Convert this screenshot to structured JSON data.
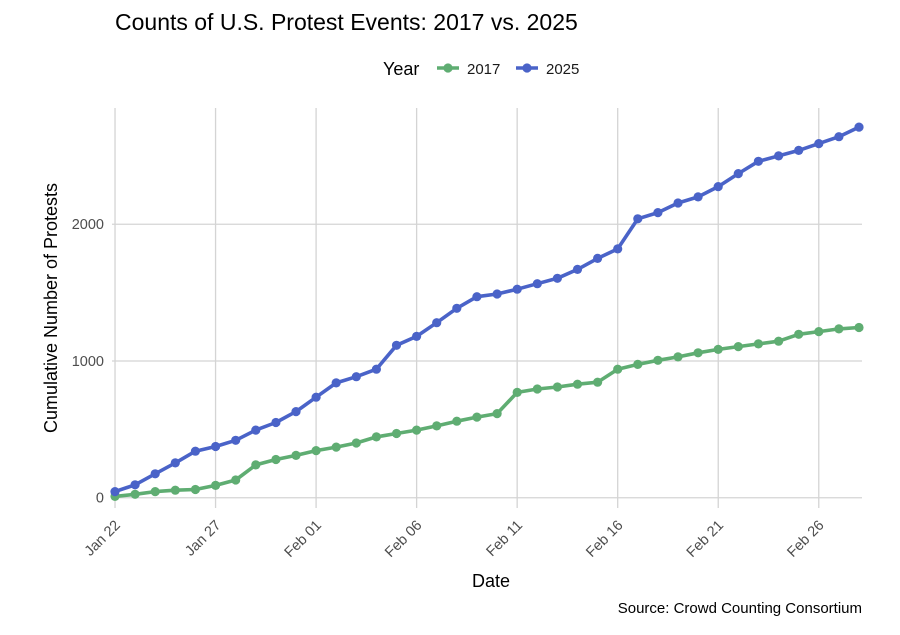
{
  "chart_data": {
    "type": "line",
    "title": "Counts of U.S. Protest Events: 2017 vs. 2025",
    "xlabel": "Date",
    "ylabel": "Cumulative Number of Protests",
    "caption": "Source: Crowd Counting Consortium",
    "legend_title": "Year",
    "legend_position": "top",
    "grid": true,
    "x_type": "date",
    "x_start": "Jan 22",
    "xlim": [
      "Jan 22",
      "Feb 28"
    ],
    "ylim": [
      -75,
      2850
    ],
    "x_ticks": [
      "Jan 22",
      "Jan 27",
      "Feb 01",
      "Feb 06",
      "Feb 11",
      "Feb 16",
      "Feb 21",
      "Feb 26"
    ],
    "y_ticks": [
      0,
      1000,
      2000
    ],
    "x": [
      "Jan 22",
      "Jan 23",
      "Jan 24",
      "Jan 25",
      "Jan 26",
      "Jan 27",
      "Jan 28",
      "Jan 29",
      "Jan 30",
      "Jan 31",
      "Feb 01",
      "Feb 02",
      "Feb 03",
      "Feb 04",
      "Feb 05",
      "Feb 06",
      "Feb 07",
      "Feb 08",
      "Feb 09",
      "Feb 10",
      "Feb 11",
      "Feb 12",
      "Feb 13",
      "Feb 14",
      "Feb 15",
      "Feb 16",
      "Feb 17",
      "Feb 18",
      "Feb 19",
      "Feb 20",
      "Feb 21",
      "Feb 22",
      "Feb 23",
      "Feb 24",
      "Feb 25",
      "Feb 26",
      "Feb 27",
      "Feb 28"
    ],
    "series": [
      {
        "name": "2017",
        "color": "#5fad72",
        "values": [
          10,
          25,
          45,
          55,
          60,
          90,
          130,
          240,
          280,
          310,
          345,
          370,
          400,
          445,
          470,
          495,
          525,
          560,
          590,
          615,
          770,
          795,
          810,
          830,
          845,
          940,
          975,
          1005,
          1030,
          1060,
          1085,
          1105,
          1125,
          1145,
          1195,
          1215,
          1235,
          1245
        ]
      },
      {
        "name": "2025",
        "color": "#4a63c8",
        "values": [
          45,
          95,
          175,
          255,
          340,
          375,
          420,
          495,
          550,
          630,
          735,
          840,
          885,
          940,
          1115,
          1180,
          1280,
          1385,
          1470,
          1490,
          1525,
          1565,
          1605,
          1670,
          1750,
          1820,
          2040,
          2085,
          2155,
          2200,
          2275,
          2370,
          2460,
          2500,
          2540,
          2590,
          2640,
          2710
        ]
      }
    ]
  }
}
